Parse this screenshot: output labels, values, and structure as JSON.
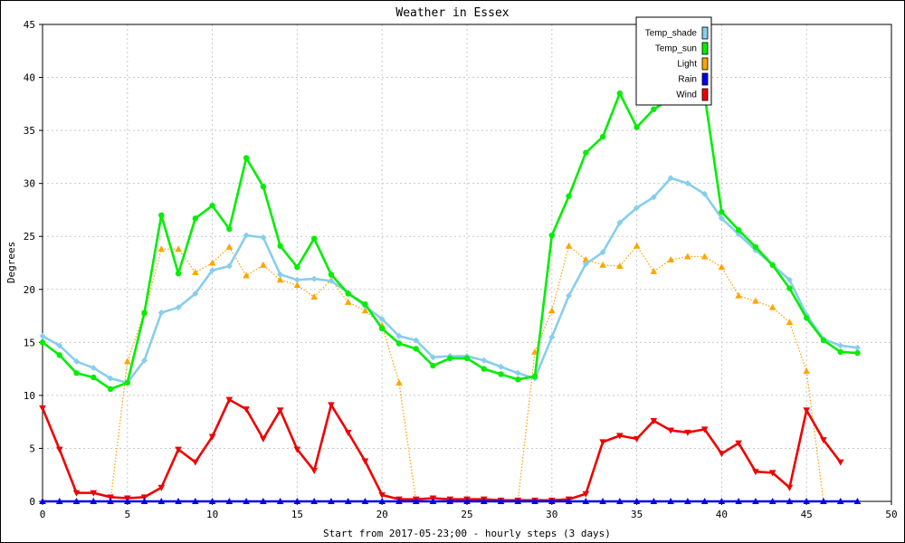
{
  "chart_data": {
    "type": "line",
    "title": "Weather in Essex",
    "xlabel": "Start from 2017-05-23;00 - hourly steps (3 days)",
    "ylabel": "Degrees",
    "xlim": [
      0,
      50
    ],
    "ylim": [
      0,
      45
    ],
    "xticks": [
      0,
      5,
      10,
      15,
      20,
      25,
      30,
      35,
      40,
      45,
      50
    ],
    "yticks": [
      0,
      5,
      10,
      15,
      20,
      25,
      30,
      35,
      40,
      45
    ],
    "grid": true,
    "legend_position": "top-right",
    "series": [
      {
        "name": "Temp_shade",
        "color": "#87ceeb",
        "marker": "diamond",
        "dash": "solid",
        "x": [
          0,
          1,
          2,
          3,
          4,
          5,
          6,
          7,
          8,
          9,
          10,
          11,
          12,
          13,
          14,
          15,
          16,
          17,
          18,
          19,
          20,
          21,
          22,
          23,
          24,
          25,
          26,
          27,
          28,
          29,
          30,
          31,
          32,
          33,
          34,
          35,
          36,
          37,
          38,
          39,
          40,
          41,
          42,
          43,
          44,
          45,
          46,
          47,
          48
        ],
        "y": [
          15.6,
          14.7,
          13.2,
          12.6,
          11.6,
          11.2,
          13.3,
          17.8,
          18.3,
          19.6,
          21.8,
          22.2,
          25.1,
          24.9,
          21.4,
          20.9,
          21.0,
          20.8,
          19.7,
          18.4,
          17.2,
          15.6,
          15.2,
          13.6,
          13.7,
          13.7,
          13.3,
          12.7,
          12.1,
          11.6,
          15.5,
          19.4,
          22.4,
          23.5,
          26.3,
          27.7,
          28.7,
          30.5,
          30.0,
          29.0,
          26.7,
          25.2,
          23.7,
          22.3,
          20.9,
          17.6,
          15.3,
          14.7,
          14.5
        ]
      },
      {
        "name": "Temp_sun",
        "color": "#00ee00",
        "marker": "circle",
        "dash": "solid",
        "x": [
          0,
          1,
          2,
          3,
          4,
          5,
          6,
          7,
          8,
          9,
          10,
          11,
          12,
          13,
          14,
          15,
          16,
          17,
          18,
          19,
          20,
          21,
          22,
          23,
          24,
          25,
          26,
          27,
          28,
          29,
          30,
          31,
          32,
          33,
          34,
          35,
          36,
          37,
          38,
          39,
          40,
          41,
          42,
          43,
          44,
          45,
          46,
          47,
          48
        ],
        "y": [
          15.0,
          13.8,
          12.1,
          11.7,
          10.6,
          11.2,
          17.8,
          27.0,
          21.5,
          26.7,
          27.9,
          25.7,
          32.4,
          29.7,
          24.1,
          22.1,
          24.8,
          21.4,
          19.6,
          18.6,
          16.3,
          14.9,
          14.4,
          12.8,
          13.5,
          13.5,
          12.5,
          12.0,
          11.5,
          11.8,
          25.1,
          28.8,
          32.9,
          34.4,
          38.5,
          35.3,
          37.0,
          38.0,
          38.6,
          38.3,
          27.3,
          25.6,
          24.0,
          22.3,
          20.1,
          17.3,
          15.2,
          14.1,
          14.0
        ]
      },
      {
        "name": "Light",
        "color": "#ffa500",
        "marker": "triangle-up",
        "dash": "dotted",
        "x": [
          0,
          1,
          2,
          3,
          4,
          5,
          6,
          7,
          8,
          9,
          10,
          11,
          12,
          13,
          14,
          15,
          16,
          17,
          18,
          19,
          20,
          21,
          22,
          23,
          24,
          25,
          26,
          27,
          28,
          29,
          30,
          31,
          32,
          33,
          34,
          35,
          36,
          37,
          38,
          39,
          40,
          41,
          42,
          43,
          44,
          45,
          46,
          47,
          48
        ],
        "y": [
          0,
          0,
          0,
          0,
          0,
          13.2,
          17.8,
          23.8,
          23.8,
          21.6,
          22.5,
          24.0,
          21.3,
          22.3,
          20.9,
          20.4,
          19.3,
          20.9,
          18.8,
          18.0,
          16.6,
          11.2,
          0,
          0,
          0,
          0,
          0,
          0,
          0,
          14.1,
          18.0,
          24.1,
          22.8,
          22.3,
          22.2,
          24.1,
          21.7,
          22.8,
          23.1,
          23.1,
          22.1,
          19.4,
          18.9,
          18.3,
          16.9,
          12.3,
          0,
          0,
          0
        ]
      },
      {
        "name": "Rain",
        "color": "#0000ee",
        "marker": "triangle-up",
        "dash": "solid",
        "x": [
          0,
          1,
          2,
          3,
          4,
          5,
          6,
          7,
          8,
          9,
          10,
          11,
          12,
          13,
          14,
          15,
          16,
          17,
          18,
          19,
          20,
          21,
          22,
          23,
          24,
          25,
          26,
          27,
          28,
          29,
          30,
          31,
          32,
          33,
          34,
          35,
          36,
          37,
          38,
          39,
          40,
          41,
          42,
          43,
          44,
          45,
          46,
          47,
          48
        ],
        "y": [
          0,
          0,
          0,
          0,
          0,
          0,
          0,
          0,
          0,
          0,
          0,
          0,
          0,
          0,
          0,
          0,
          0,
          0,
          0,
          0,
          0,
          0,
          0,
          0,
          0,
          0,
          0,
          0,
          0,
          0,
          0,
          0,
          0,
          0,
          0,
          0,
          0,
          0,
          0,
          0,
          0,
          0,
          0,
          0,
          0,
          0,
          0,
          0,
          0
        ]
      },
      {
        "name": "Wind",
        "color": "#ee0000",
        "marker": "triangle-down",
        "dash": "solid",
        "x": [
          0,
          1,
          2,
          3,
          4,
          5,
          6,
          7,
          8,
          9,
          10,
          11,
          12,
          13,
          14,
          15,
          16,
          17,
          18,
          19,
          20,
          21,
          22,
          23,
          24,
          25,
          26,
          27,
          28,
          29,
          30,
          31,
          32,
          33,
          34,
          35,
          36,
          37,
          38,
          39,
          40,
          41,
          42,
          43,
          44,
          45,
          46,
          47
        ],
        "y": [
          8.8,
          4.9,
          0.8,
          0.8,
          0.4,
          0.3,
          0.4,
          1.3,
          4.9,
          3.7,
          6.1,
          9.6,
          8.7,
          5.9,
          8.6,
          4.9,
          2.9,
          9.1,
          6.5,
          3.8,
          0.6,
          0.2,
          0.2,
          0.3,
          0.2,
          0.2,
          0.2,
          0.1,
          0.1,
          0.1,
          0.1,
          0.2,
          0.7,
          5.6,
          6.2,
          5.9,
          7.6,
          6.7,
          6.5,
          6.8,
          4.5,
          5.5,
          2.8,
          2.7,
          1.3,
          8.6,
          5.8,
          3.7
        ]
      }
    ]
  }
}
